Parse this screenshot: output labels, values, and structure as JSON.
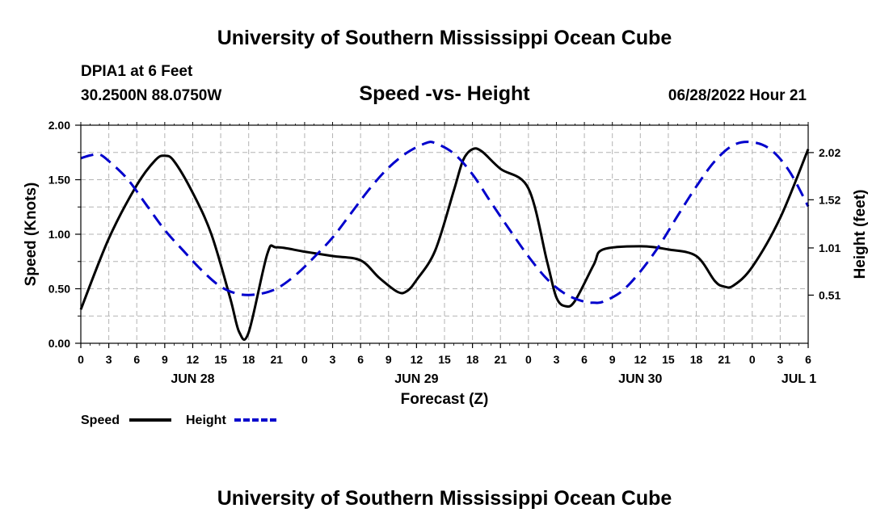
{
  "header": {
    "title": "University of Southern Mississippi Ocean Cube",
    "station": "DPIA1 at 6 Feet",
    "coords": "30.2500N  88.0750W",
    "subtitle": "Speed -vs- Height",
    "timestamp": "06/28/2022 Hour 21",
    "footer_title": "University of Southern Mississippi Ocean Cube"
  },
  "chart_data": {
    "type": "line",
    "title": "Speed -vs- Height",
    "xlabel": "Forecast (Z)",
    "ylabel_left": "Speed (Knots)",
    "ylabel_right": "Height (feet)",
    "x_unit": "hours since JUN 28 00Z",
    "xlim": [
      0,
      78
    ],
    "ylim_left": [
      0,
      2.0
    ],
    "ylim_right": [
      0.0,
      2.31
    ],
    "grid": true,
    "x_ticks": [
      {
        "x": 0,
        "label": "0"
      },
      {
        "x": 3,
        "label": "3"
      },
      {
        "x": 6,
        "label": "6"
      },
      {
        "x": 9,
        "label": "9"
      },
      {
        "x": 12,
        "label": "12"
      },
      {
        "x": 15,
        "label": "15"
      },
      {
        "x": 18,
        "label": "18"
      },
      {
        "x": 21,
        "label": "21"
      },
      {
        "x": 24,
        "label": "0"
      },
      {
        "x": 27,
        "label": "3"
      },
      {
        "x": 30,
        "label": "6"
      },
      {
        "x": 33,
        "label": "9"
      },
      {
        "x": 36,
        "label": "12"
      },
      {
        "x": 39,
        "label": "15"
      },
      {
        "x": 42,
        "label": "18"
      },
      {
        "x": 45,
        "label": "21"
      },
      {
        "x": 48,
        "label": "0"
      },
      {
        "x": 51,
        "label": "3"
      },
      {
        "x": 54,
        "label": "6"
      },
      {
        "x": 57,
        "label": "9"
      },
      {
        "x": 60,
        "label": "12"
      },
      {
        "x": 63,
        "label": "15"
      },
      {
        "x": 66,
        "label": "18"
      },
      {
        "x": 69,
        "label": "21"
      },
      {
        "x": 72,
        "label": "0"
      },
      {
        "x": 75,
        "label": "3"
      },
      {
        "x": 78,
        "label": "6"
      }
    ],
    "date_labels": [
      {
        "x": 12,
        "label": "JUN 28"
      },
      {
        "x": 36,
        "label": "JUN 29"
      },
      {
        "x": 60,
        "label": "JUN 30"
      },
      {
        "x": 77,
        "label": "JUL 1"
      }
    ],
    "y_left_ticks": [
      {
        "v": 0.0,
        "label": "0.00"
      },
      {
        "v": 0.5,
        "label": "0.50"
      },
      {
        "v": 1.0,
        "label": "1.00"
      },
      {
        "v": 1.5,
        "label": "1.50"
      },
      {
        "v": 2.0,
        "label": "2.00"
      }
    ],
    "y_right_ticks": [
      {
        "v": 0.51,
        "label": "0.51"
      },
      {
        "v": 1.01,
        "label": "1.01"
      },
      {
        "v": 1.52,
        "label": "1.52"
      },
      {
        "v": 2.02,
        "label": "2.02"
      }
    ],
    "series": [
      {
        "name": "Speed",
        "axis": "left",
        "color": "#000000",
        "dash": "solid",
        "points": [
          [
            0,
            0.31
          ],
          [
            3,
            0.96
          ],
          [
            6,
            1.45
          ],
          [
            8,
            1.68
          ],
          [
            9,
            1.72
          ],
          [
            10,
            1.67
          ],
          [
            12,
            1.38
          ],
          [
            14,
            1.0
          ],
          [
            16,
            0.42
          ],
          [
            17,
            0.1
          ],
          [
            18,
            0.1
          ],
          [
            20,
            0.82
          ],
          [
            21,
            0.88
          ],
          [
            24,
            0.84
          ],
          [
            27,
            0.8
          ],
          [
            30,
            0.76
          ],
          [
            32,
            0.6
          ],
          [
            34,
            0.47
          ],
          [
            35,
            0.48
          ],
          [
            36,
            0.58
          ],
          [
            38,
            0.85
          ],
          [
            40,
            1.4
          ],
          [
            41,
            1.68
          ],
          [
            42,
            1.78
          ],
          [
            43,
            1.76
          ],
          [
            45,
            1.6
          ],
          [
            48,
            1.42
          ],
          [
            50,
            0.75
          ],
          [
            51,
            0.42
          ],
          [
            52,
            0.34
          ],
          [
            53,
            0.39
          ],
          [
            55,
            0.72
          ],
          [
            56,
            0.86
          ],
          [
            60,
            0.89
          ],
          [
            63,
            0.86
          ],
          [
            66,
            0.8
          ],
          [
            68,
            0.57
          ],
          [
            69,
            0.52
          ],
          [
            70,
            0.53
          ],
          [
            72,
            0.7
          ],
          [
            75,
            1.15
          ],
          [
            78,
            1.78
          ]
        ]
      },
      {
        "name": "Height",
        "axis": "right",
        "color": "#0000cc",
        "dash": "dashed",
        "points": [
          [
            0,
            1.96
          ],
          [
            1,
            1.99
          ],
          [
            2,
            2.0
          ],
          [
            3,
            1.93
          ],
          [
            5,
            1.74
          ],
          [
            7,
            1.47
          ],
          [
            9,
            1.2
          ],
          [
            11,
            0.98
          ],
          [
            13,
            0.77
          ],
          [
            15,
            0.6
          ],
          [
            17,
            0.52
          ],
          [
            19,
            0.52
          ],
          [
            21,
            0.58
          ],
          [
            23,
            0.72
          ],
          [
            25,
            0.91
          ],
          [
            27,
            1.12
          ],
          [
            29,
            1.38
          ],
          [
            31,
            1.64
          ],
          [
            33,
            1.86
          ],
          [
            35,
            2.02
          ],
          [
            37,
            2.12
          ],
          [
            38,
            2.12
          ],
          [
            40,
            2.01
          ],
          [
            42,
            1.79
          ],
          [
            44,
            1.49
          ],
          [
            46,
            1.2
          ],
          [
            48,
            0.92
          ],
          [
            50,
            0.68
          ],
          [
            52,
            0.52
          ],
          [
            54,
            0.44
          ],
          [
            55,
            0.43
          ],
          [
            56,
            0.44
          ],
          [
            58,
            0.55
          ],
          [
            60,
            0.76
          ],
          [
            62,
            1.03
          ],
          [
            64,
            1.35
          ],
          [
            66,
            1.66
          ],
          [
            68,
            1.93
          ],
          [
            70,
            2.1
          ],
          [
            72,
            2.13
          ],
          [
            74,
            2.05
          ],
          [
            76,
            1.82
          ],
          [
            78,
            1.45
          ]
        ]
      }
    ]
  },
  "legend": {
    "speed_label": "Speed",
    "height_label": "Height",
    "speed_color": "#000000",
    "height_color": "#0000cc"
  }
}
